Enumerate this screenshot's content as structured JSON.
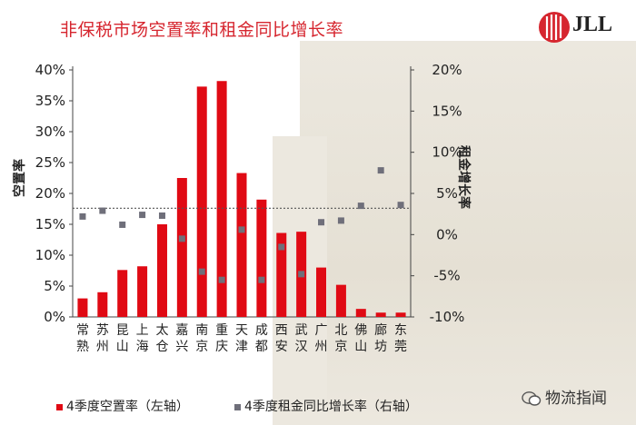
{
  "title": "非保税市场空置率和租金同比增长率",
  "brand": "JLL",
  "watermark": "物流指闻",
  "colors": {
    "bar": "#e00a14",
    "marker": "#6f6f7a",
    "title": "#d6262f"
  },
  "chart_data": {
    "type": "bar",
    "categories": [
      "常熟",
      "苏州",
      "昆山",
      "上海",
      "太仓",
      "嘉兴",
      "南京",
      "重庆",
      "天津",
      "成都",
      "西安",
      "武汉",
      "广州",
      "北京",
      "佛山",
      "廊坊",
      "东莞"
    ],
    "y_left_label": "空置率",
    "y_right_label": "租金增长率",
    "y_left_ticks": [
      "0%",
      "5%",
      "10%",
      "15%",
      "20%",
      "25%",
      "30%",
      "35%",
      "40%"
    ],
    "y_right_ticks": [
      "-10%",
      "-5%",
      "0%",
      "5%",
      "10%",
      "15%",
      "20%"
    ],
    "ylim_left": [
      0,
      40
    ],
    "ylim_right": [
      -10,
      20
    ],
    "reference_line_right": 3.2,
    "grid": false,
    "series": [
      {
        "name": "4季度空置率（左轴）",
        "axis": "left",
        "type": "bar",
        "values": [
          3.0,
          4.0,
          7.6,
          8.2,
          15.0,
          22.5,
          37.3,
          38.2,
          23.3,
          19.0,
          13.6,
          13.8,
          8.0,
          5.2,
          1.3,
          0.7,
          0.7
        ]
      },
      {
        "name": "4季度租金同比增长率（右轴）",
        "axis": "right",
        "type": "scatter",
        "values": [
          2.2,
          2.9,
          1.2,
          2.4,
          2.3,
          -0.5,
          -4.5,
          -5.5,
          0.6,
          -5.5,
          -1.5,
          -4.8,
          1.5,
          1.7,
          3.5,
          7.8,
          3.6
        ]
      }
    ],
    "legend_position": "bottom"
  }
}
